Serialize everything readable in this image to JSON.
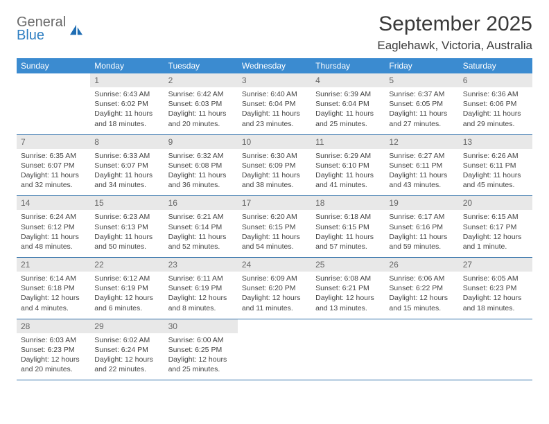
{
  "brand": {
    "general": "General",
    "blue": "Blue",
    "sail_color": "#1f6db3"
  },
  "title": "September 2025",
  "location": "Eaglehawk, Victoria, Australia",
  "colors": {
    "header_bg": "#3b8bd0",
    "header_fg": "#ffffff",
    "daynum_bg": "#e8e8e8",
    "daynum_fg": "#666666",
    "border": "#2f6fa8",
    "text": "#444444"
  },
  "days_of_week": [
    "Sunday",
    "Monday",
    "Tuesday",
    "Wednesday",
    "Thursday",
    "Friday",
    "Saturday"
  ],
  "weeks": [
    [
      null,
      {
        "n": "1",
        "sunrise": "6:43 AM",
        "sunset": "6:02 PM",
        "daylight": "11 hours and 18 minutes."
      },
      {
        "n": "2",
        "sunrise": "6:42 AM",
        "sunset": "6:03 PM",
        "daylight": "11 hours and 20 minutes."
      },
      {
        "n": "3",
        "sunrise": "6:40 AM",
        "sunset": "6:04 PM",
        "daylight": "11 hours and 23 minutes."
      },
      {
        "n": "4",
        "sunrise": "6:39 AM",
        "sunset": "6:04 PM",
        "daylight": "11 hours and 25 minutes."
      },
      {
        "n": "5",
        "sunrise": "6:37 AM",
        "sunset": "6:05 PM",
        "daylight": "11 hours and 27 minutes."
      },
      {
        "n": "6",
        "sunrise": "6:36 AM",
        "sunset": "6:06 PM",
        "daylight": "11 hours and 29 minutes."
      }
    ],
    [
      {
        "n": "7",
        "sunrise": "6:35 AM",
        "sunset": "6:07 PM",
        "daylight": "11 hours and 32 minutes."
      },
      {
        "n": "8",
        "sunrise": "6:33 AM",
        "sunset": "6:07 PM",
        "daylight": "11 hours and 34 minutes."
      },
      {
        "n": "9",
        "sunrise": "6:32 AM",
        "sunset": "6:08 PM",
        "daylight": "11 hours and 36 minutes."
      },
      {
        "n": "10",
        "sunrise": "6:30 AM",
        "sunset": "6:09 PM",
        "daylight": "11 hours and 38 minutes."
      },
      {
        "n": "11",
        "sunrise": "6:29 AM",
        "sunset": "6:10 PM",
        "daylight": "11 hours and 41 minutes."
      },
      {
        "n": "12",
        "sunrise": "6:27 AM",
        "sunset": "6:11 PM",
        "daylight": "11 hours and 43 minutes."
      },
      {
        "n": "13",
        "sunrise": "6:26 AM",
        "sunset": "6:11 PM",
        "daylight": "11 hours and 45 minutes."
      }
    ],
    [
      {
        "n": "14",
        "sunrise": "6:24 AM",
        "sunset": "6:12 PM",
        "daylight": "11 hours and 48 minutes."
      },
      {
        "n": "15",
        "sunrise": "6:23 AM",
        "sunset": "6:13 PM",
        "daylight": "11 hours and 50 minutes."
      },
      {
        "n": "16",
        "sunrise": "6:21 AM",
        "sunset": "6:14 PM",
        "daylight": "11 hours and 52 minutes."
      },
      {
        "n": "17",
        "sunrise": "6:20 AM",
        "sunset": "6:15 PM",
        "daylight": "11 hours and 54 minutes."
      },
      {
        "n": "18",
        "sunrise": "6:18 AM",
        "sunset": "6:15 PM",
        "daylight": "11 hours and 57 minutes."
      },
      {
        "n": "19",
        "sunrise": "6:17 AM",
        "sunset": "6:16 PM",
        "daylight": "11 hours and 59 minutes."
      },
      {
        "n": "20",
        "sunrise": "6:15 AM",
        "sunset": "6:17 PM",
        "daylight": "12 hours and 1 minute."
      }
    ],
    [
      {
        "n": "21",
        "sunrise": "6:14 AM",
        "sunset": "6:18 PM",
        "daylight": "12 hours and 4 minutes."
      },
      {
        "n": "22",
        "sunrise": "6:12 AM",
        "sunset": "6:19 PM",
        "daylight": "12 hours and 6 minutes."
      },
      {
        "n": "23",
        "sunrise": "6:11 AM",
        "sunset": "6:19 PM",
        "daylight": "12 hours and 8 minutes."
      },
      {
        "n": "24",
        "sunrise": "6:09 AM",
        "sunset": "6:20 PM",
        "daylight": "12 hours and 11 minutes."
      },
      {
        "n": "25",
        "sunrise": "6:08 AM",
        "sunset": "6:21 PM",
        "daylight": "12 hours and 13 minutes."
      },
      {
        "n": "26",
        "sunrise": "6:06 AM",
        "sunset": "6:22 PM",
        "daylight": "12 hours and 15 minutes."
      },
      {
        "n": "27",
        "sunrise": "6:05 AM",
        "sunset": "6:23 PM",
        "daylight": "12 hours and 18 minutes."
      }
    ],
    [
      {
        "n": "28",
        "sunrise": "6:03 AM",
        "sunset": "6:23 PM",
        "daylight": "12 hours and 20 minutes."
      },
      {
        "n": "29",
        "sunrise": "6:02 AM",
        "sunset": "6:24 PM",
        "daylight": "12 hours and 22 minutes."
      },
      {
        "n": "30",
        "sunrise": "6:00 AM",
        "sunset": "6:25 PM",
        "daylight": "12 hours and 25 minutes."
      },
      null,
      null,
      null,
      null
    ]
  ],
  "labels": {
    "sunrise": "Sunrise:",
    "sunset": "Sunset:",
    "daylight": "Daylight:"
  }
}
